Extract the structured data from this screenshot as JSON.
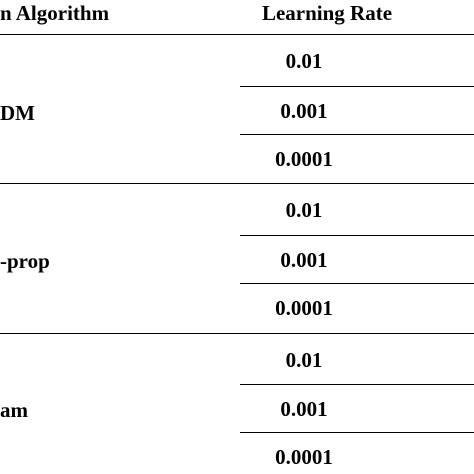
{
  "table": {
    "headers": {
      "algorithm": "n Algorithm",
      "learning_rate": "Learning Rate"
    },
    "groups": [
      {
        "algorithm": "DM",
        "rates": [
          "0.01",
          "0.001",
          "0.0001"
        ]
      },
      {
        "algorithm": "-prop",
        "rates": [
          "0.01",
          "0.001",
          "0.0001"
        ]
      },
      {
        "algorithm": "am",
        "rates": [
          "0.01",
          "0.001",
          "0.0001"
        ]
      }
    ]
  }
}
